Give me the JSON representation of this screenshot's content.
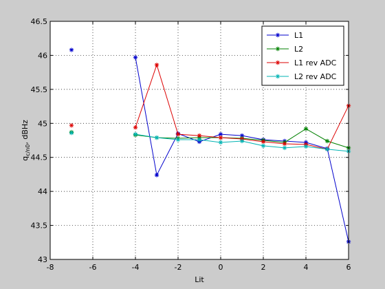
{
  "chart_data": {
    "type": "line",
    "xlabel": "Lit",
    "ylabel_main": "q",
    "ylabel_sub": "c/n0",
    "ylabel_rest": ", dBHz",
    "xlim": [
      -8,
      6
    ],
    "ylim": [
      43,
      46.5
    ],
    "xticks": [
      -8,
      -6,
      -4,
      -2,
      0,
      2,
      4,
      6
    ],
    "xtick_labels": [
      "-8",
      "-6",
      "-4",
      "-2",
      "0",
      "2",
      "4",
      "6"
    ],
    "yticks": [
      43,
      43.5,
      44,
      44.5,
      45,
      45.5,
      46,
      46.5
    ],
    "ytick_labels": [
      "43",
      "43.5",
      "44",
      "44.5",
      "45",
      "45.5",
      "46",
      "46.5"
    ],
    "grid": true,
    "legend_position": "top-right",
    "marker": "asterisk",
    "series": [
      {
        "name": "L1",
        "color": "#0000cc",
        "points": [
          [
            -7,
            46.08
          ],
          [
            -4,
            45.97
          ],
          [
            -3,
            44.24
          ],
          [
            -2,
            44.85
          ],
          [
            -1,
            44.73
          ],
          [
            0,
            44.84
          ],
          [
            1,
            44.82
          ],
          [
            2,
            44.76
          ],
          [
            3,
            44.74
          ],
          [
            4,
            44.72
          ],
          [
            5,
            44.63
          ],
          [
            6,
            43.26
          ]
        ]
      },
      {
        "name": "L2",
        "color": "#008000",
        "points": [
          [
            -7,
            44.87
          ],
          [
            -4,
            44.83
          ],
          [
            -3,
            44.79
          ],
          [
            -2,
            44.78
          ],
          [
            -1,
            44.79
          ],
          [
            0,
            44.79
          ],
          [
            1,
            44.78
          ],
          [
            2,
            44.75
          ],
          [
            3,
            44.72
          ],
          [
            4,
            44.92
          ],
          [
            5,
            44.74
          ],
          [
            6,
            44.64
          ]
        ]
      },
      {
        "name": "L1 rev ADC",
        "color": "#dd0000",
        "points": [
          [
            -7,
            44.97
          ],
          [
            -4,
            44.94
          ],
          [
            -3,
            45.86
          ],
          [
            -2,
            44.84
          ],
          [
            -1,
            44.82
          ],
          [
            0,
            44.79
          ],
          [
            1,
            44.77
          ],
          [
            2,
            44.73
          ],
          [
            3,
            44.7
          ],
          [
            4,
            44.69
          ],
          [
            5,
            44.62
          ],
          [
            6,
            45.26
          ]
        ]
      },
      {
        "name": "L2 rev ADC",
        "color": "#00b3b3",
        "points": [
          [
            -7,
            44.86
          ],
          [
            -4,
            44.84
          ],
          [
            -3,
            44.79
          ],
          [
            -2,
            44.76
          ],
          [
            -1,
            44.76
          ],
          [
            0,
            44.72
          ],
          [
            1,
            44.74
          ],
          [
            2,
            44.67
          ],
          [
            3,
            44.64
          ],
          [
            4,
            44.66
          ],
          [
            5,
            44.62
          ],
          [
            6,
            44.59
          ]
        ]
      }
    ]
  }
}
